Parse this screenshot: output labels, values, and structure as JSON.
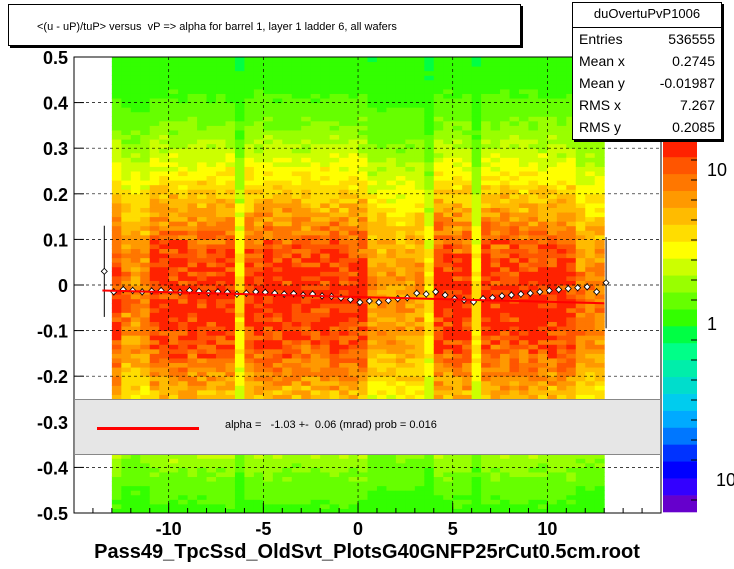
{
  "title": "<(u - uP)/tuP> versus  vP => alpha for barrel 1, layer 1 ladder 6, all wafers",
  "stats": {
    "name": "duOvertuPvP1006",
    "rows": [
      {
        "label": "Entries",
        "value": "536555"
      },
      {
        "label": "Mean x",
        "value": "0.2745"
      },
      {
        "label": "Mean y",
        "value": "-0.01987"
      },
      {
        "label": "RMS x",
        "value": "7.267"
      },
      {
        "label": "RMS y",
        "value": "0.2085"
      }
    ]
  },
  "fit": {
    "text": "alpha =   -1.03 +-  0.06 (mrad) prob = 0.016",
    "line_color": "#ff0000"
  },
  "footer": "Pass49_TpcSsd_OldSvt_PlotsG40GNFP25rCut0.5cm.root",
  "chart_data": {
    "type": "heatmap",
    "title": "<(u - uP)/tuP> versus  vP => alpha for barrel 1, layer 1 ladder 6, all wafers",
    "xlabel": "",
    "ylabel": "",
    "xlim": [
      -15,
      16
    ],
    "ylim": [
      -0.5,
      0.5
    ],
    "x_ticks": [
      -10,
      -5,
      0,
      5,
      10
    ],
    "x_tick_labels": [
      "-10",
      "-5",
      "0",
      "5",
      "10"
    ],
    "y_ticks": [
      -0.5,
      -0.4,
      -0.3,
      -0.2,
      -0.1,
      0,
      0.1,
      0.2,
      0.3,
      0.4,
      0.5
    ],
    "y_tick_labels": [
      "-0.5",
      "-0.4",
      "-0.3",
      "-0.2",
      "-0.1",
      "0",
      "0.1",
      "0.2",
      "0.3",
      "0.4",
      "0.5"
    ],
    "grid": true,
    "colorbar": {
      "scale": "log",
      "labels": [
        "10",
        "1",
        "10"
      ],
      "colors": [
        "#6600cc",
        "#3300ff",
        "#0000ff",
        "#0033ff",
        "#0077ff",
        "#00aaff",
        "#00ccee",
        "#00ddcc",
        "#00eeaa",
        "#00ff88",
        "#00ff44",
        "#33ff00",
        "#66ff00",
        "#99ff00",
        "#ccff00",
        "#ffff00",
        "#ffdd00",
        "#ffbb00",
        "#ff9900",
        "#ff7700",
        "#ff5500",
        "#ff2200"
      ]
    },
    "profile": {
      "x": [
        -13.4,
        -12.9,
        -12.4,
        -11.9,
        -11.4,
        -10.9,
        -10.4,
        -9.9,
        -9.4,
        -8.9,
        -8.4,
        -7.9,
        -7.4,
        -6.9,
        -6.4,
        -5.9,
        -5.4,
        -4.9,
        -4.4,
        -3.9,
        -3.4,
        -2.9,
        -2.4,
        -1.9,
        -1.4,
        -0.9,
        -0.4,
        0.1,
        0.6,
        1.1,
        1.6,
        2.1,
        2.6,
        3.1,
        3.6,
        4.1,
        4.6,
        5.1,
        5.6,
        6.1,
        6.6,
        7.1,
        7.6,
        8.1,
        8.6,
        9.1,
        9.6,
        10.1,
        10.6,
        11.1,
        11.6,
        12.1,
        12.6,
        13.1
      ],
      "y": [
        0.03,
        -0.015,
        -0.01,
        -0.012,
        -0.015,
        -0.013,
        -0.012,
        -0.014,
        -0.016,
        -0.012,
        -0.014,
        -0.017,
        -0.015,
        -0.016,
        -0.02,
        -0.018,
        -0.015,
        -0.016,
        -0.018,
        -0.02,
        -0.019,
        -0.022,
        -0.02,
        -0.024,
        -0.025,
        -0.028,
        -0.032,
        -0.038,
        -0.035,
        -0.038,
        -0.034,
        -0.03,
        -0.028,
        -0.018,
        -0.02,
        -0.015,
        -0.022,
        -0.03,
        -0.033,
        -0.037,
        -0.03,
        -0.028,
        -0.024,
        -0.022,
        -0.02,
        -0.018,
        -0.015,
        -0.012,
        -0.01,
        -0.008,
        -0.006,
        -0.004,
        -0.015,
        0.005
      ]
    },
    "fit_line": {
      "x": [
        -13.5,
        13.0
      ],
      "y": [
        -0.012,
        -0.04
      ]
    }
  }
}
